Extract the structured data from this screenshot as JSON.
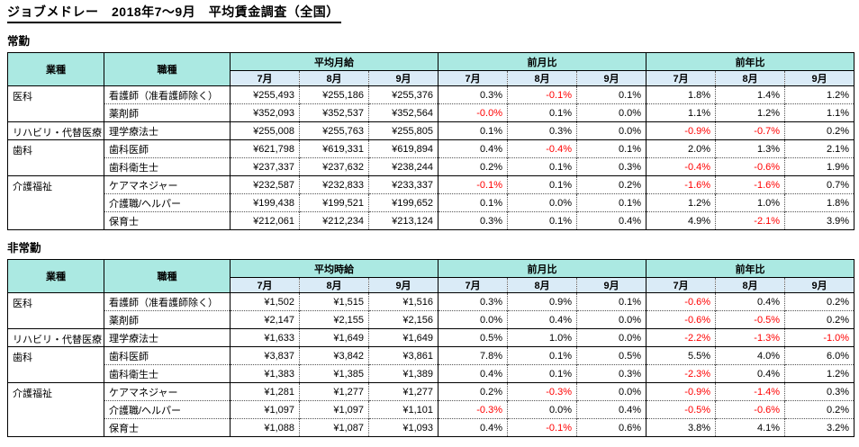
{
  "page": {
    "title": "ジョブメドレー　2018年7～9月　平均賃金調査（全国）"
  },
  "colors": {
    "header_teal": "#ABE9E2",
    "subheader_blue": "#DAEBF7",
    "negative": "#FF0000"
  },
  "tables": [
    {
      "section_label": "常勤",
      "headers": {
        "industry": "業種",
        "occupation": "職種",
        "wage_group": "平均月給",
        "mom_group": "前月比",
        "yoy_group": "前年比",
        "months": [
          "7月",
          "8月",
          "9月"
        ]
      },
      "rows": [
        {
          "industry": "医科",
          "industry_rowspan": 2,
          "occupation": "看護師（准看護師除く）",
          "wages": [
            "¥255,493",
            "¥255,186",
            "¥255,376"
          ],
          "mom": [
            "0.3%",
            "-0.1%",
            "0.1%"
          ],
          "yoy": [
            "1.8%",
            "1.4%",
            "1.2%"
          ]
        },
        {
          "occupation": "薬剤師",
          "wages": [
            "¥352,093",
            "¥352,537",
            "¥352,564"
          ],
          "mom": [
            "-0.0%",
            "0.1%",
            "0.0%"
          ],
          "yoy": [
            "1.1%",
            "1.2%",
            "1.1%"
          ]
        },
        {
          "industry": "リハビリ・代替医療",
          "industry_rowspan": 1,
          "occupation": "理学療法士",
          "wages": [
            "¥255,008",
            "¥255,763",
            "¥255,805"
          ],
          "mom": [
            "0.1%",
            "0.3%",
            "0.0%"
          ],
          "yoy": [
            "-0.9%",
            "-0.7%",
            "0.2%"
          ]
        },
        {
          "industry": "歯科",
          "industry_rowspan": 2,
          "occupation": "歯科医師",
          "wages": [
            "¥621,798",
            "¥619,331",
            "¥619,894"
          ],
          "mom": [
            "0.4%",
            "-0.4%",
            "0.1%"
          ],
          "yoy": [
            "2.0%",
            "1.3%",
            "2.1%"
          ]
        },
        {
          "occupation": "歯科衛生士",
          "wages": [
            "¥237,337",
            "¥237,632",
            "¥238,244"
          ],
          "mom": [
            "0.2%",
            "0.1%",
            "0.3%"
          ],
          "yoy": [
            "-0.4%",
            "-0.6%",
            "1.9%"
          ]
        },
        {
          "industry": "介護福祉",
          "industry_rowspan": 3,
          "occupation": "ケアマネジャー",
          "wages": [
            "¥232,587",
            "¥232,833",
            "¥233,337"
          ],
          "mom": [
            "-0.1%",
            "0.1%",
            "0.2%"
          ],
          "yoy": [
            "-1.6%",
            "-1.6%",
            "0.7%"
          ]
        },
        {
          "occupation": "介護職/ヘルパー",
          "wages": [
            "¥199,438",
            "¥199,521",
            "¥199,652"
          ],
          "mom": [
            "0.1%",
            "0.0%",
            "0.1%"
          ],
          "yoy": [
            "1.2%",
            "1.0%",
            "1.8%"
          ]
        },
        {
          "occupation": "保育士",
          "wages": [
            "¥212,061",
            "¥212,234",
            "¥213,124"
          ],
          "mom": [
            "0.3%",
            "0.1%",
            "0.4%"
          ],
          "yoy": [
            "4.9%",
            "-2.1%",
            "3.9%"
          ]
        }
      ]
    },
    {
      "section_label": "非常勤",
      "headers": {
        "industry": "業種",
        "occupation": "職種",
        "wage_group": "平均時給",
        "mom_group": "前月比",
        "yoy_group": "前年比",
        "months": [
          "7月",
          "8月",
          "9月"
        ]
      },
      "rows": [
        {
          "industry": "医科",
          "industry_rowspan": 2,
          "occupation": "看護師（准看護師除く）",
          "wages": [
            "¥1,502",
            "¥1,515",
            "¥1,516"
          ],
          "mom": [
            "0.3%",
            "0.9%",
            "0.1%"
          ],
          "yoy": [
            "-0.6%",
            "0.4%",
            "0.2%"
          ]
        },
        {
          "occupation": "薬剤師",
          "wages": [
            "¥2,147",
            "¥2,155",
            "¥2,156"
          ],
          "mom": [
            "0.0%",
            "0.4%",
            "0.0%"
          ],
          "yoy": [
            "-0.6%",
            "-0.5%",
            "0.2%"
          ]
        },
        {
          "industry": "リハビリ・代替医療",
          "industry_rowspan": 1,
          "occupation": "理学療法士",
          "wages": [
            "¥1,633",
            "¥1,649",
            "¥1,649"
          ],
          "mom": [
            "0.5%",
            "1.0%",
            "0.0%"
          ],
          "yoy": [
            "-2.2%",
            "-1.3%",
            "-1.0%"
          ]
        },
        {
          "industry": "歯科",
          "industry_rowspan": 2,
          "occupation": "歯科医師",
          "wages": [
            "¥3,837",
            "¥3,842",
            "¥3,861"
          ],
          "mom": [
            "7.8%",
            "0.1%",
            "0.5%"
          ],
          "yoy": [
            "5.5%",
            "4.0%",
            "6.0%"
          ]
        },
        {
          "occupation": "歯科衛生士",
          "wages": [
            "¥1,383",
            "¥1,385",
            "¥1,389"
          ],
          "mom": [
            "0.4%",
            "0.1%",
            "0.3%"
          ],
          "yoy": [
            "-2.3%",
            "0.4%",
            "1.2%"
          ]
        },
        {
          "industry": "介護福祉",
          "industry_rowspan": 3,
          "occupation": "ケアマネジャー",
          "wages": [
            "¥1,281",
            "¥1,277",
            "¥1,277"
          ],
          "mom": [
            "0.2%",
            "-0.3%",
            "0.0%"
          ],
          "yoy": [
            "-0.9%",
            "-1.4%",
            "0.3%"
          ]
        },
        {
          "occupation": "介護職/ヘルパー",
          "wages": [
            "¥1,097",
            "¥1,097",
            "¥1,101"
          ],
          "mom": [
            "-0.3%",
            "0.0%",
            "0.4%"
          ],
          "yoy": [
            "-0.5%",
            "-0.6%",
            "0.2%"
          ]
        },
        {
          "occupation": "保育士",
          "wages": [
            "¥1,088",
            "¥1,087",
            "¥1,093"
          ],
          "mom": [
            "0.4%",
            "-0.1%",
            "0.6%"
          ],
          "yoy": [
            "3.8%",
            "4.1%",
            "3.2%"
          ]
        }
      ]
    }
  ]
}
